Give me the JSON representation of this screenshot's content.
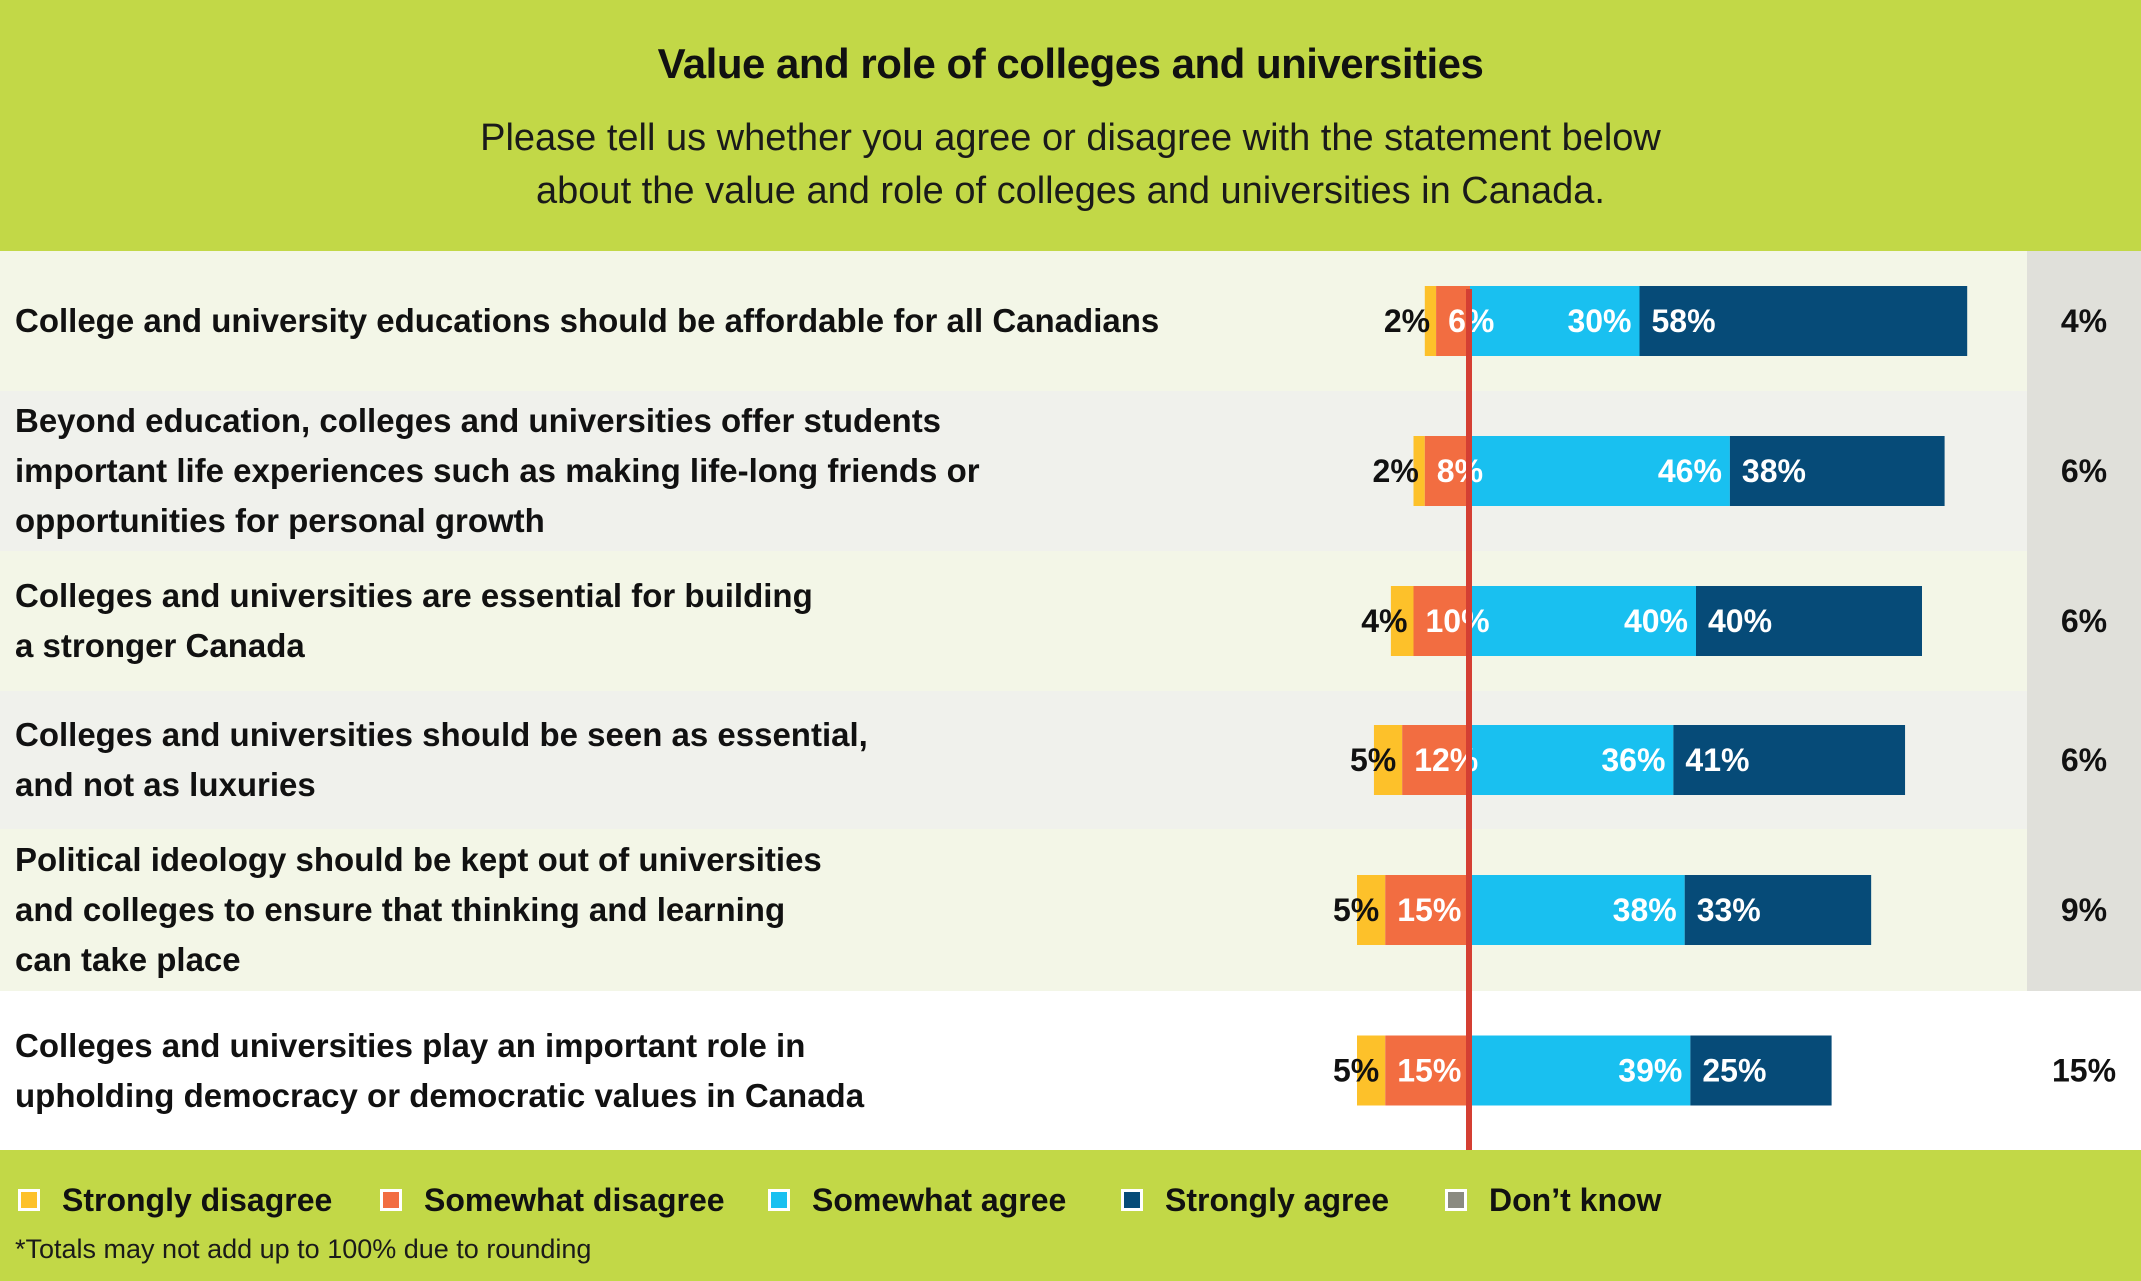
{
  "header": {
    "title": "Value and role of colleges and universities",
    "subtitle_line1": "Please tell us whether you agree or disagree with the statement below",
    "subtitle_line2": "about the value and role of colleges and universities in Canada."
  },
  "colors": {
    "strongly_disagree": "#fdc12a",
    "somewhat_disagree": "#f26d41",
    "somewhat_agree": "#19c0f0",
    "strongly_agree": "#064b78",
    "dont_know": "#e0e0da",
    "center_line": "#d43f33",
    "header_bg": "#c2d847"
  },
  "chart_data": {
    "type": "bar",
    "orientation": "horizontal diverging stacked",
    "title": "Value and role of colleges and universities",
    "categories": [
      [
        "College and university educations should be affordable for all Canadians"
      ],
      [
        "Beyond education, colleges and universities offer students",
        "important life experiences such as making life-long friends or",
        "opportunities for personal growth"
      ],
      [
        "Colleges and universities are essential for building",
        "a stronger Canada"
      ],
      [
        "Colleges and universities should be seen as essential,",
        "and not as luxuries"
      ],
      [
        "Political ideology should be kept out of universities",
        "and colleges to ensure that thinking and learning",
        "can take place"
      ],
      [
        "Colleges and universities play an important role in",
        "upholding democracy or democratic values in Canada"
      ]
    ],
    "series": [
      {
        "name": "Strongly disagree",
        "values": [
          2,
          2,
          4,
          5,
          5,
          5
        ]
      },
      {
        "name": "Somewhat disagree",
        "values": [
          6,
          8,
          10,
          12,
          15,
          15
        ]
      },
      {
        "name": "Somewhat agree",
        "values": [
          30,
          46,
          40,
          36,
          38,
          39
        ]
      },
      {
        "name": "Strongly agree",
        "values": [
          58,
          38,
          40,
          41,
          33,
          25
        ]
      },
      {
        "name": "Don’t know",
        "values": [
          4,
          6,
          6,
          6,
          9,
          15
        ]
      }
    ],
    "unit": "%",
    "legend_position": "bottom",
    "footnote": "*Totals may not add up to 100% due to rounding"
  }
}
